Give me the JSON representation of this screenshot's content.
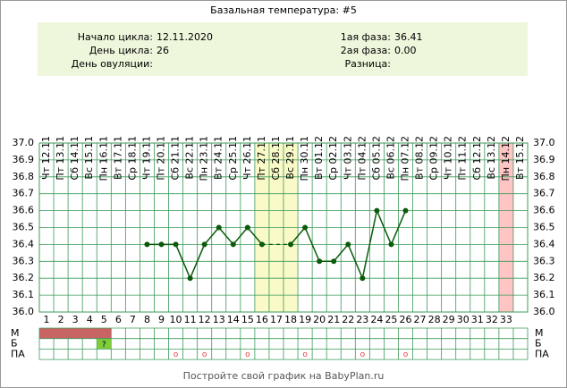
{
  "chart_data": {
    "type": "line",
    "title": "Базальная температура: #5",
    "info_left": [
      {
        "label": "Начало цикла:",
        "value": "12.11.2020"
      },
      {
        "label": "День цикла:",
        "value": "26"
      },
      {
        "label": "День овуляции:",
        "value": ""
      }
    ],
    "info_right": [
      {
        "label": "1ая фаза:",
        "value": "36.41"
      },
      {
        "label": "2ая фаза:",
        "value": "0.00"
      },
      {
        "label": "Разница:",
        "value": ""
      }
    ],
    "categories": [
      "Чт 12.11",
      "Пт 13.11",
      "Сб 14.11",
      "Вс 15.11",
      "Пн 16.11",
      "Вт 17.11",
      "Ср 18.11",
      "Чт 19.11",
      "Пт 20.11",
      "Сб 21.11",
      "Вс 22.11",
      "Пн 23.11",
      "Вт 24.11",
      "Ср 25.11",
      "Чт 26.11",
      "Пт 27.11",
      "Сб 28.11",
      "Вс 29.11",
      "Пн 30.11",
      "Вт 01.12",
      "Ср 02.12",
      "Чт 03.12",
      "Пт 04.12",
      "Сб 05.12",
      "Вс 06.12",
      "Пн 07.12",
      "Вт 08.12",
      "Ср 09.12",
      "Чт 10.12",
      "Пт 11.12",
      "Сб 12.12",
      "Вс 13.12",
      "Пн 14.12",
      "Вт 15.12"
    ],
    "day_numbers": [
      1,
      2,
      3,
      4,
      5,
      6,
      7,
      8,
      9,
      10,
      11,
      12,
      13,
      14,
      15,
      16,
      17,
      18,
      19,
      20,
      21,
      22,
      23,
      24,
      25,
      26,
      27,
      28,
      29,
      30,
      31,
      32,
      33,
      null
    ],
    "series": [
      {
        "color": "#0b5a0b",
        "values": [
          null,
          null,
          null,
          null,
          null,
          null,
          null,
          36.4,
          36.4,
          36.4,
          36.2,
          36.4,
          36.5,
          36.4,
          36.5,
          36.4,
          null,
          36.4,
          36.5,
          36.3,
          36.3,
          36.4,
          36.2,
          36.6,
          36.4,
          36.6,
          null,
          null,
          null,
          null,
          null,
          null,
          null,
          null
        ]
      }
    ],
    "ylim": [
      36.0,
      37.0
    ],
    "yticks": [
      {
        "value": 36,
        "label": "36.0"
      },
      36.1,
      36.2,
      36.3,
      36.4,
      36.5,
      36.6,
      36.7,
      36.8,
      36.9,
      {
        "value": 37,
        "label": "37.0"
      }
    ],
    "grid": true,
    "grid_color": "#3c9a5a",
    "bands": [
      {
        "from": 16,
        "to": 18,
        "color": "#fafac8"
      },
      {
        "from": 33,
        "to": 33,
        "color": "#ffc4c4"
      }
    ],
    "row_labels": [
      "М",
      "Б",
      "ПА"
    ],
    "m_days": [
      1,
      2,
      3,
      4,
      5
    ],
    "m_color": "#c86464",
    "b_marks": [
      {
        "day": 5,
        "label": "?",
        "color": "#7ccc3c"
      }
    ],
    "pa_days": [
      10,
      12,
      15,
      19,
      23,
      26
    ],
    "pa_symbol": "o",
    "pa_color": "#e04040",
    "footer": "Постройте свой график на BabyPlan.ru"
  }
}
